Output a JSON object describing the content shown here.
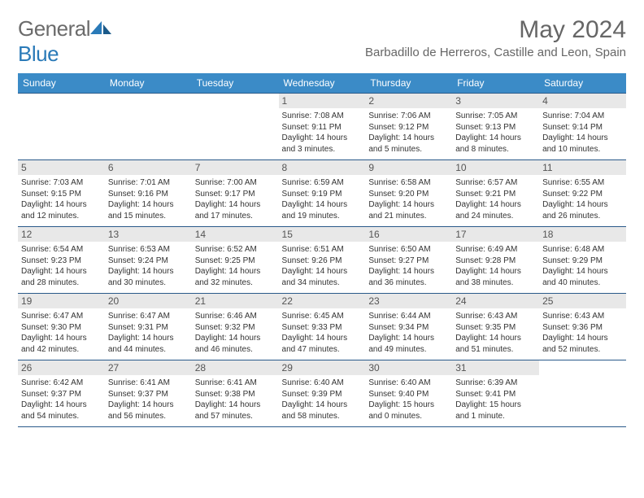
{
  "logo": {
    "textA": "General",
    "textB": "Blue"
  },
  "title": "May 2024",
  "location": "Barbadillo de Herreros, Castille and Leon, Spain",
  "colors": {
    "headerBg": "#3b8bc7",
    "headerText": "#ffffff",
    "dayNumBg": "#e8e8e8",
    "rowBorder": "#2a5a8a",
    "titleColor": "#666666",
    "logoBlue": "#2a7ab8",
    "logoGray": "#6b6b6b",
    "bodyText": "#333333"
  },
  "dayNames": [
    "Sunday",
    "Monday",
    "Tuesday",
    "Wednesday",
    "Thursday",
    "Friday",
    "Saturday"
  ],
  "weeks": [
    [
      null,
      null,
      null,
      {
        "n": "1",
        "sunrise": "7:08 AM",
        "sunset": "9:11 PM",
        "daylight": "14 hours and 3 minutes."
      },
      {
        "n": "2",
        "sunrise": "7:06 AM",
        "sunset": "9:12 PM",
        "daylight": "14 hours and 5 minutes."
      },
      {
        "n": "3",
        "sunrise": "7:05 AM",
        "sunset": "9:13 PM",
        "daylight": "14 hours and 8 minutes."
      },
      {
        "n": "4",
        "sunrise": "7:04 AM",
        "sunset": "9:14 PM",
        "daylight": "14 hours and 10 minutes."
      }
    ],
    [
      {
        "n": "5",
        "sunrise": "7:03 AM",
        "sunset": "9:15 PM",
        "daylight": "14 hours and 12 minutes."
      },
      {
        "n": "6",
        "sunrise": "7:01 AM",
        "sunset": "9:16 PM",
        "daylight": "14 hours and 15 minutes."
      },
      {
        "n": "7",
        "sunrise": "7:00 AM",
        "sunset": "9:17 PM",
        "daylight": "14 hours and 17 minutes."
      },
      {
        "n": "8",
        "sunrise": "6:59 AM",
        "sunset": "9:19 PM",
        "daylight": "14 hours and 19 minutes."
      },
      {
        "n": "9",
        "sunrise": "6:58 AM",
        "sunset": "9:20 PM",
        "daylight": "14 hours and 21 minutes."
      },
      {
        "n": "10",
        "sunrise": "6:57 AM",
        "sunset": "9:21 PM",
        "daylight": "14 hours and 24 minutes."
      },
      {
        "n": "11",
        "sunrise": "6:55 AM",
        "sunset": "9:22 PM",
        "daylight": "14 hours and 26 minutes."
      }
    ],
    [
      {
        "n": "12",
        "sunrise": "6:54 AM",
        "sunset": "9:23 PM",
        "daylight": "14 hours and 28 minutes."
      },
      {
        "n": "13",
        "sunrise": "6:53 AM",
        "sunset": "9:24 PM",
        "daylight": "14 hours and 30 minutes."
      },
      {
        "n": "14",
        "sunrise": "6:52 AM",
        "sunset": "9:25 PM",
        "daylight": "14 hours and 32 minutes."
      },
      {
        "n": "15",
        "sunrise": "6:51 AM",
        "sunset": "9:26 PM",
        "daylight": "14 hours and 34 minutes."
      },
      {
        "n": "16",
        "sunrise": "6:50 AM",
        "sunset": "9:27 PM",
        "daylight": "14 hours and 36 minutes."
      },
      {
        "n": "17",
        "sunrise": "6:49 AM",
        "sunset": "9:28 PM",
        "daylight": "14 hours and 38 minutes."
      },
      {
        "n": "18",
        "sunrise": "6:48 AM",
        "sunset": "9:29 PM",
        "daylight": "14 hours and 40 minutes."
      }
    ],
    [
      {
        "n": "19",
        "sunrise": "6:47 AM",
        "sunset": "9:30 PM",
        "daylight": "14 hours and 42 minutes."
      },
      {
        "n": "20",
        "sunrise": "6:47 AM",
        "sunset": "9:31 PM",
        "daylight": "14 hours and 44 minutes."
      },
      {
        "n": "21",
        "sunrise": "6:46 AM",
        "sunset": "9:32 PM",
        "daylight": "14 hours and 46 minutes."
      },
      {
        "n": "22",
        "sunrise": "6:45 AM",
        "sunset": "9:33 PM",
        "daylight": "14 hours and 47 minutes."
      },
      {
        "n": "23",
        "sunrise": "6:44 AM",
        "sunset": "9:34 PM",
        "daylight": "14 hours and 49 minutes."
      },
      {
        "n": "24",
        "sunrise": "6:43 AM",
        "sunset": "9:35 PM",
        "daylight": "14 hours and 51 minutes."
      },
      {
        "n": "25",
        "sunrise": "6:43 AM",
        "sunset": "9:36 PM",
        "daylight": "14 hours and 52 minutes."
      }
    ],
    [
      {
        "n": "26",
        "sunrise": "6:42 AM",
        "sunset": "9:37 PM",
        "daylight": "14 hours and 54 minutes."
      },
      {
        "n": "27",
        "sunrise": "6:41 AM",
        "sunset": "9:37 PM",
        "daylight": "14 hours and 56 minutes."
      },
      {
        "n": "28",
        "sunrise": "6:41 AM",
        "sunset": "9:38 PM",
        "daylight": "14 hours and 57 minutes."
      },
      {
        "n": "29",
        "sunrise": "6:40 AM",
        "sunset": "9:39 PM",
        "daylight": "14 hours and 58 minutes."
      },
      {
        "n": "30",
        "sunrise": "6:40 AM",
        "sunset": "9:40 PM",
        "daylight": "15 hours and 0 minutes."
      },
      {
        "n": "31",
        "sunrise": "6:39 AM",
        "sunset": "9:41 PM",
        "daylight": "15 hours and 1 minute."
      },
      null
    ]
  ],
  "labels": {
    "sunrise": "Sunrise: ",
    "sunset": "Sunset: ",
    "daylight": "Daylight: "
  }
}
